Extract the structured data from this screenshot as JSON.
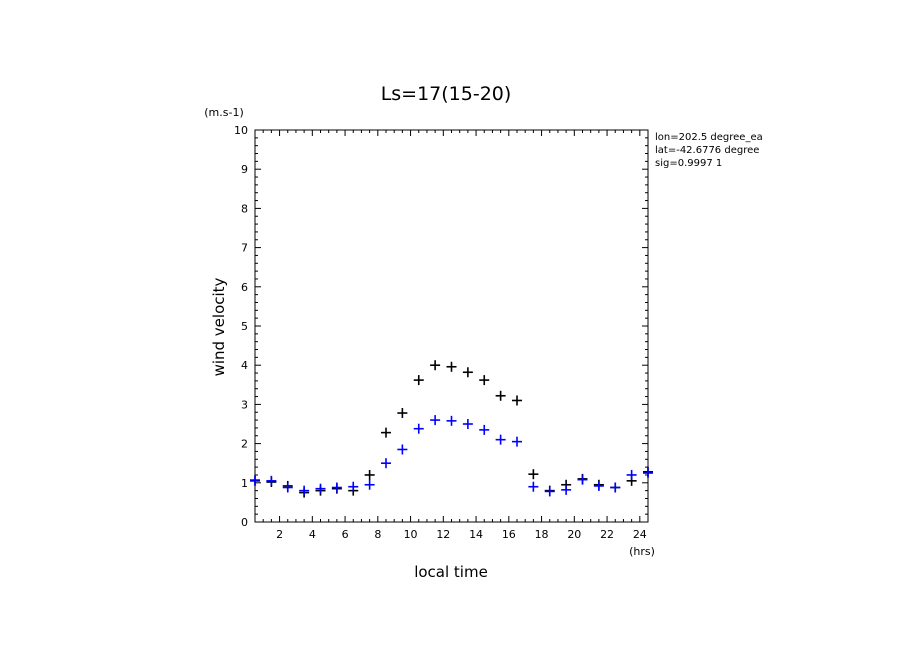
{
  "chart_data": {
    "type": "scatter",
    "title": "Ls=17(15-20)",
    "xlabel": "local time",
    "ylabel": "wind velocity",
    "x_unit": "(hrs)",
    "y_unit": "(m.s-1)",
    "xlim": [
      0.5,
      24.5
    ],
    "ylim": [
      0,
      10
    ],
    "x_ticks": [
      "2",
      "4",
      "6",
      "8",
      "10",
      "12",
      "14",
      "16",
      "18",
      "20",
      "22",
      "24"
    ],
    "y_ticks": [
      "0",
      "1",
      "2",
      "3",
      "4",
      "5",
      "6",
      "7",
      "8",
      "9",
      "10"
    ],
    "grid": false,
    "marker": "+",
    "annotations": [
      "lon=202.5 degree_ea",
      "lat=-42.6776 degree",
      "sig=0.9997 1"
    ],
    "series": [
      {
        "color": "#000000",
        "x": [
          0.5,
          1.5,
          2.5,
          3.5,
          4.5,
          5.5,
          6.5,
          7.5,
          8.5,
          9.5,
          10.5,
          11.5,
          12.5,
          13.5,
          14.5,
          15.5,
          16.5,
          17.5,
          18.5,
          19.5,
          20.5,
          21.5,
          22.5,
          23.5,
          24.5
        ],
        "y": [
          1.05,
          1.02,
          0.92,
          0.75,
          0.8,
          0.85,
          0.8,
          1.2,
          2.28,
          2.78,
          3.62,
          4.0,
          3.96,
          3.82,
          3.62,
          3.22,
          3.1,
          1.22,
          0.8,
          0.95,
          1.1,
          0.95,
          0.88,
          1.05,
          1.28
        ]
      },
      {
        "color": "#0000ff",
        "x": [
          0.5,
          1.5,
          2.5,
          3.5,
          4.5,
          5.5,
          6.5,
          7.5,
          8.5,
          9.5,
          10.5,
          11.5,
          12.5,
          13.5,
          14.5,
          15.5,
          16.5,
          17.5,
          18.5,
          19.5,
          20.5,
          21.5,
          22.5,
          23.5,
          24.5
        ],
        "y": [
          1.07,
          1.05,
          0.88,
          0.8,
          0.85,
          0.88,
          0.9,
          0.95,
          1.5,
          1.85,
          2.38,
          2.6,
          2.58,
          2.5,
          2.35,
          2.1,
          2.05,
          0.9,
          0.78,
          0.82,
          1.08,
          0.92,
          0.88,
          1.2,
          1.25
        ]
      }
    ]
  }
}
